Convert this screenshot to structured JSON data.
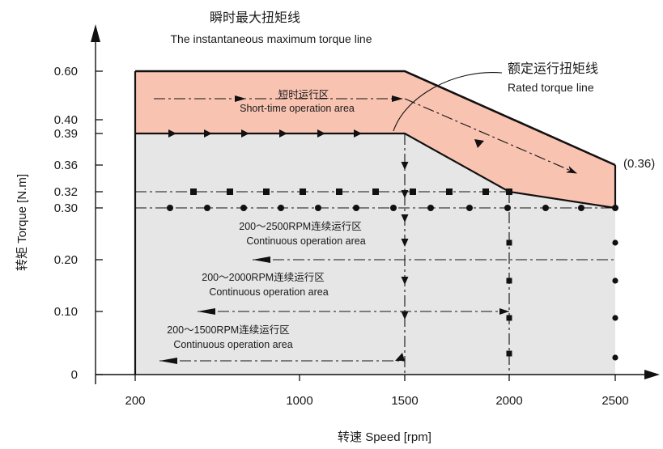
{
  "chart_data": {
    "type": "area",
    "xlabel": "转速 Speed [rpm]",
    "ylabel": "转矩 Torque [N.m]",
    "x_ticks": [
      200,
      1000,
      1500,
      2000,
      2500
    ],
    "y_ticks": [
      0,
      0.1,
      0.2,
      0.3,
      0.32,
      0.36,
      0.39,
      0.4,
      0.6
    ],
    "y_tick_labels": [
      "0",
      "0.10",
      "0.20",
      "0.30",
      "0.32",
      "0.36",
      "0.39",
      "0.40",
      "0.60"
    ],
    "colors": {
      "short_time_area": "#f9c3b2",
      "continuous_area": "#e6e6e6",
      "line": "#111111"
    },
    "series": [
      {
        "name": "瞬时最大扭矩线 The instantaneous maximum torque line",
        "points": [
          [
            200,
            0.6
          ],
          [
            1500,
            0.6
          ],
          [
            2500,
            0.36
          ]
        ]
      },
      {
        "name": "额定运行扭矩线 Rated torque line",
        "points": [
          [
            200,
            0.39
          ],
          [
            1500,
            0.39
          ],
          [
            2000,
            0.32
          ],
          [
            2500,
            0.3
          ]
        ]
      },
      {
        "name": "0.32 reference",
        "points": [
          [
            200,
            0.32
          ],
          [
            2000,
            0.32
          ]
        ]
      },
      {
        "name": "0.30 reference",
        "points": [
          [
            200,
            0.3
          ],
          [
            2500,
            0.3
          ]
        ]
      }
    ],
    "annotations": {
      "instantaneous_line_cn": "瞬时最大扭矩线",
      "instantaneous_line_en": "The instantaneous maximum torque line",
      "rated_line_cn": "额定运行扭矩线",
      "rated_line_en": "Rated torque line",
      "short_time_cn": "短时运行区",
      "short_time_en": "Short-time operation area",
      "end_value": "(0.36)",
      "cont_2500_cn": "200～2500RPM连续运行区",
      "cont_2000_cn": "200～2000RPM连续运行区",
      "cont_1500_cn": "200～1500RPM连续运行区",
      "continuous_en": "Continuous operation area"
    }
  }
}
